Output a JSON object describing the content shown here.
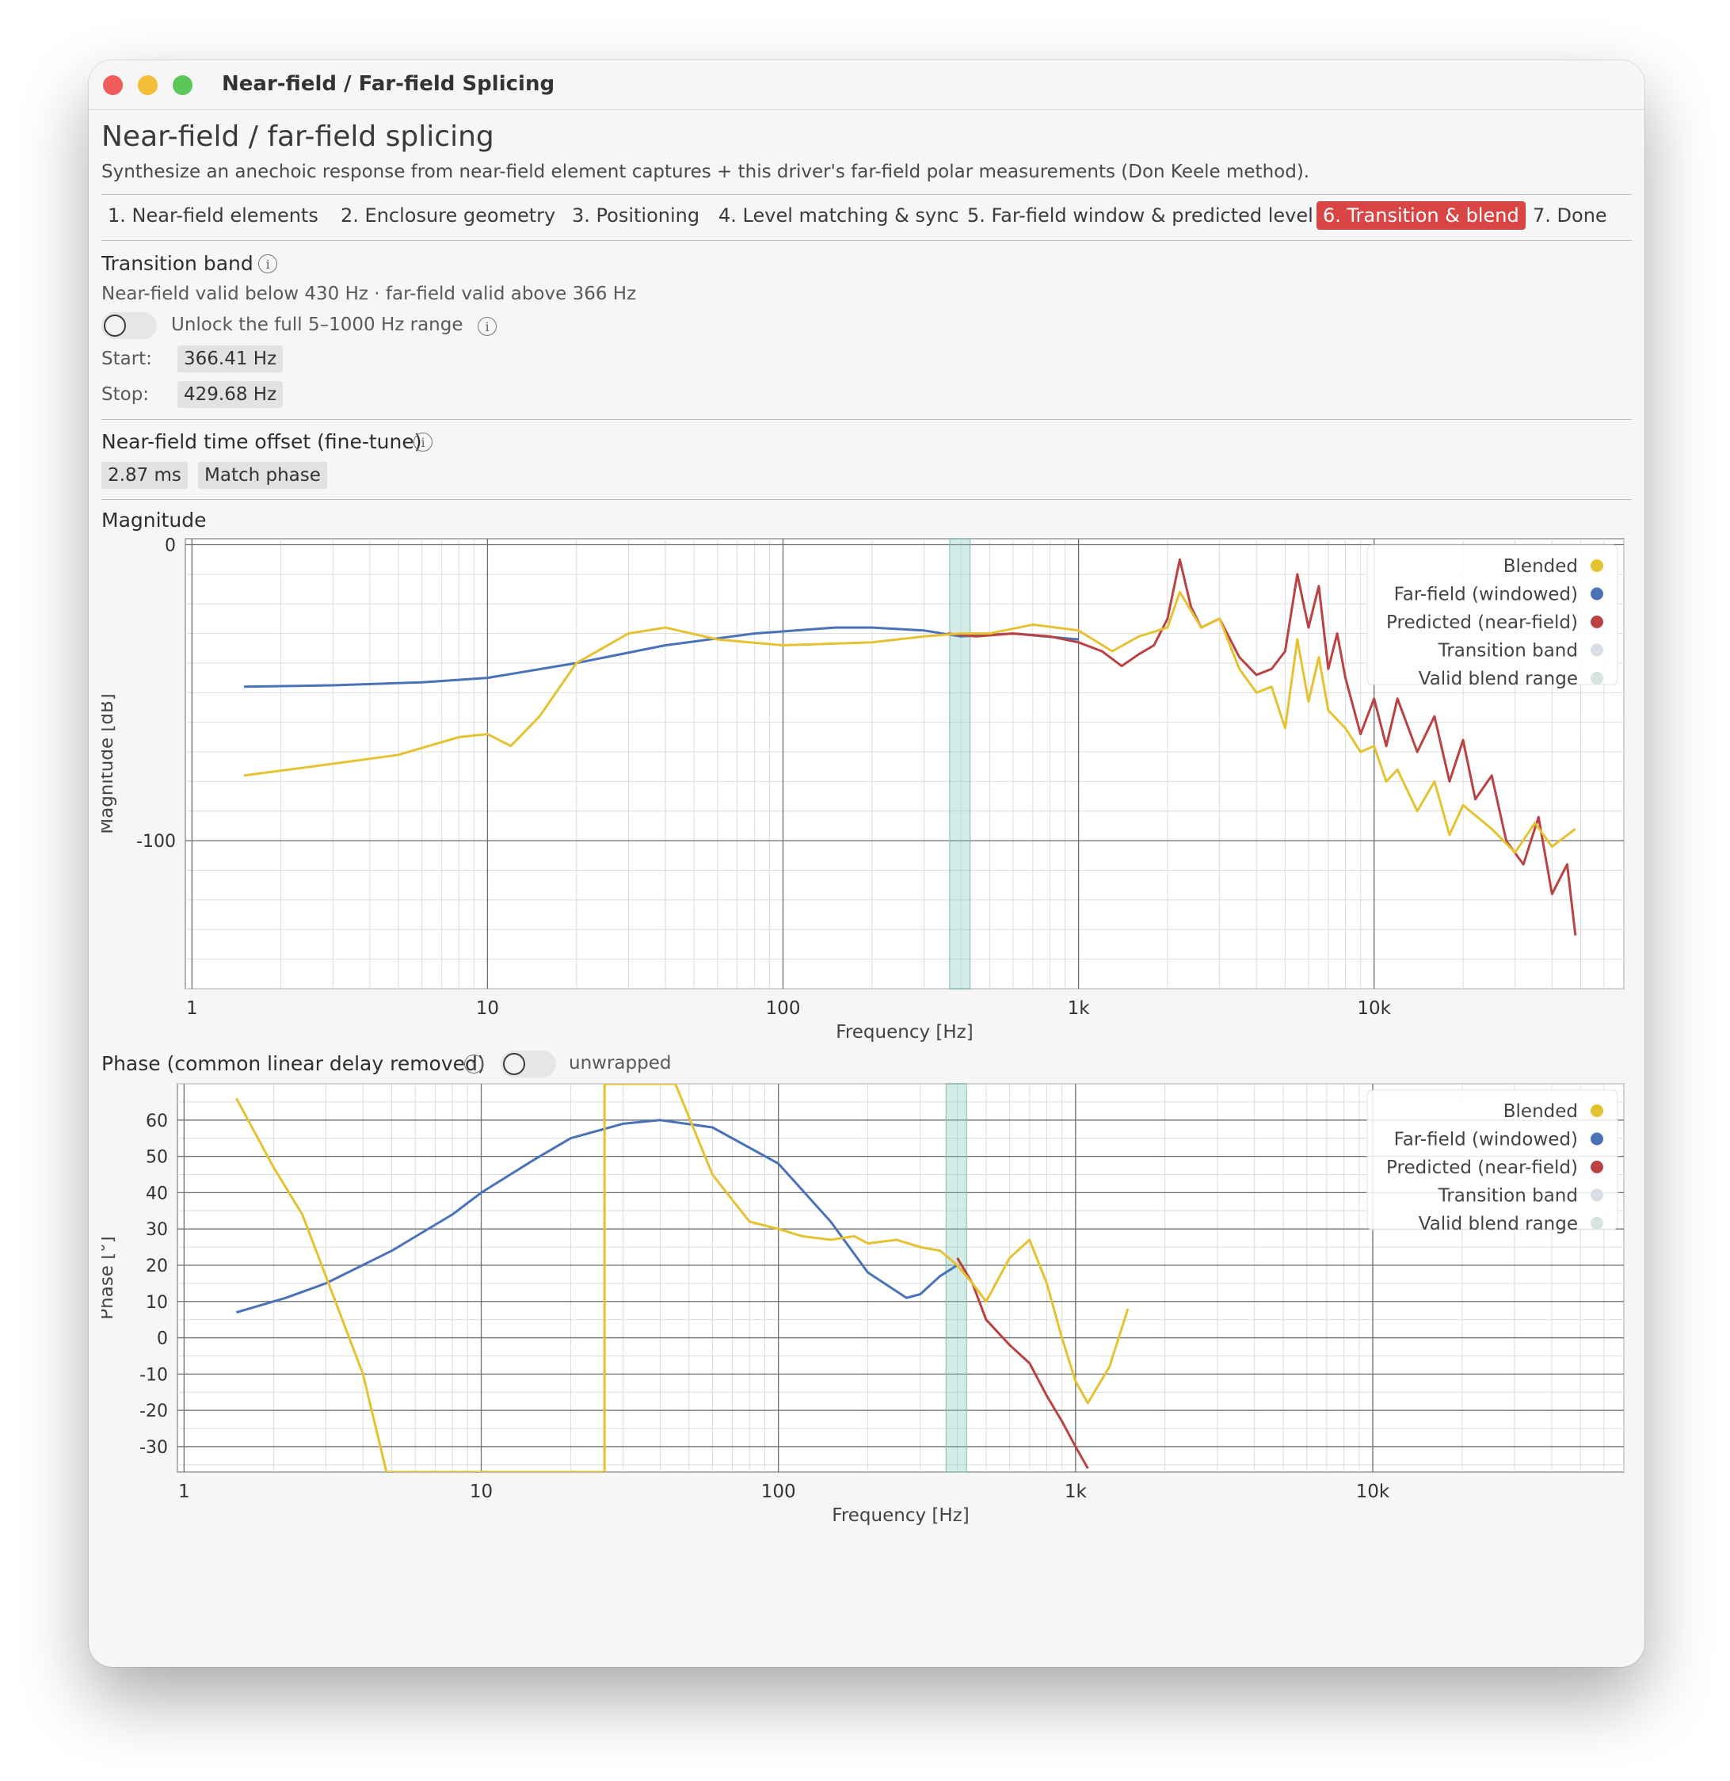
{
  "window": {
    "title": "Near-field / Far-field Splicing"
  },
  "page": {
    "title": "Near-field / far-field splicing",
    "subtitle": "Synthesize an anechoic response from near-field element captures + this driver's far-field polar measurements (Don Keele method)."
  },
  "tabs": [
    {
      "label": "1. Near-field elements",
      "active": false
    },
    {
      "label": "2. Enclosure geometry",
      "active": false
    },
    {
      "label": "3. Positioning",
      "active": false
    },
    {
      "label": "4. Level matching & sync",
      "active": false
    },
    {
      "label": "5. Far-field window & predicted level",
      "active": false
    },
    {
      "label": "6. Transition & blend",
      "active": true
    },
    {
      "label": "7. Done",
      "active": false
    }
  ],
  "transition": {
    "heading": "Transition band",
    "validity": "Near-field valid below 430 Hz  ·  far-field valid above 366 Hz",
    "unlock_label": "Unlock the full 5–1000 Hz range",
    "unlock_on": false,
    "start_label": "Start:",
    "start_value": "366.41 Hz",
    "stop_label": "Stop:",
    "stop_value": "429.68 Hz"
  },
  "offset": {
    "heading": "Near-field time offset (fine-tune)",
    "value": "2.87 ms",
    "match_button": "Match phase"
  },
  "magnitude": {
    "heading": "Magnitude",
    "ylabel": "Magnitude [dB]",
    "xlabel": "Frequency [Hz]"
  },
  "phase": {
    "heading": "Phase (common linear delay removed)",
    "toggle_label": "unwrapped",
    "unwrapped_on": false,
    "ylabel": "Phase [°]",
    "xlabel": "Frequency [Hz]"
  },
  "legend": [
    {
      "label": "Blended",
      "color": "#e5c232"
    },
    {
      "label": "Far-field (windowed)",
      "color": "#4a72b8"
    },
    {
      "label": "Predicted (near-field)",
      "color": "#bb4242"
    },
    {
      "label": "Transition band",
      "color": "#d8dde6"
    },
    {
      "label": "Valid blend range",
      "color": "#d9e2dc"
    }
  ],
  "chart_data": [
    {
      "type": "line",
      "title": "Magnitude",
      "xlabel": "Frequency [Hz]",
      "ylabel": "Magnitude [dB]",
      "xscale": "log",
      "xlim": [
        0.95,
        70000
      ],
      "ylim": [
        -150,
        2
      ],
      "x_ticks": [
        {
          "value": 1,
          "label": "1"
        },
        {
          "value": 10,
          "label": "10"
        },
        {
          "value": 100,
          "label": "100"
        },
        {
          "value": 1000,
          "label": "1k"
        },
        {
          "value": 10000,
          "label": "10k"
        }
      ],
      "y_ticks": [
        {
          "value": 0,
          "label": "0"
        },
        {
          "value": -100,
          "label": "-100"
        }
      ],
      "grid": true,
      "legend_position": "top-right",
      "transition_band": [
        366.41,
        429.68
      ],
      "series": [
        {
          "name": "Far-field (windowed)",
          "color": "#4a72b8",
          "x": [
            1.5,
            3,
            6,
            10,
            20,
            40,
            80,
            150,
            200,
            300,
            400,
            600,
            1000
          ],
          "y": [
            -48,
            -47.5,
            -46.5,
            -45,
            -40,
            -34,
            -30,
            -28,
            -28,
            -29,
            -31,
            -30,
            -32
          ]
        },
        {
          "name": "Predicted (near-field)",
          "color": "#bb4242",
          "x": [
            360,
            450,
            600,
            800,
            1000,
            1200,
            1400,
            1600,
            1800,
            2000,
            2200,
            2400,
            2600,
            3000,
            3500,
            4000,
            4500,
            5000,
            5500,
            6000,
            6500,
            7000,
            7500,
            8000,
            9000,
            10000,
            11000,
            12000,
            14000,
            16000,
            18000,
            20000,
            22000,
            25000,
            28000,
            32000,
            36000,
            40000,
            45000,
            48000
          ],
          "y": [
            -30,
            -31,
            -30,
            -31,
            -33,
            -36,
            -41,
            -37,
            -34,
            -25,
            -5,
            -21,
            -28,
            -25,
            -38,
            -44,
            -42,
            -36,
            -10,
            -28,
            -14,
            -42,
            -30,
            -45,
            -64,
            -52,
            -68,
            -52,
            -70,
            -58,
            -80,
            -66,
            -86,
            -78,
            -100,
            -108,
            -92,
            -118,
            -108,
            -132
          ]
        },
        {
          "name": "Blended",
          "color": "#e5c232",
          "x": [
            1.5,
            3,
            5,
            8,
            10,
            12,
            15,
            20,
            30,
            40,
            60,
            100,
            200,
            300,
            400,
            500,
            700,
            1000,
            1300,
            1600,
            2000,
            2200,
            2600,
            3000,
            3500,
            4000,
            4500,
            5000,
            5500,
            6000,
            6500,
            7000,
            8000,
            9000,
            10000,
            11000,
            12000,
            14000,
            16000,
            18000,
            20000,
            25000,
            30000,
            35000,
            40000,
            48000
          ],
          "y": [
            -78,
            -74,
            -71,
            -65,
            -64,
            -68,
            -58,
            -40,
            -30,
            -28,
            -32,
            -34,
            -33,
            -31,
            -30,
            -30,
            -27,
            -29,
            -36,
            -31,
            -28,
            -16,
            -28,
            -25,
            -42,
            -50,
            -48,
            -62,
            -32,
            -53,
            -38,
            -56,
            -62,
            -70,
            -68,
            -80,
            -76,
            -90,
            -80,
            -98,
            -88,
            -96,
            -104,
            -94,
            -102,
            -96
          ]
        }
      ]
    },
    {
      "type": "line",
      "title": "Phase (common linear delay removed)",
      "xlabel": "Frequency [Hz]",
      "ylabel": "Phase [°]",
      "xscale": "log",
      "xlim": [
        0.95,
        70000
      ],
      "ylim": [
        -37,
        70
      ],
      "x_ticks": [
        {
          "value": 1,
          "label": "1"
        },
        {
          "value": 10,
          "label": "10"
        },
        {
          "value": 100,
          "label": "100"
        },
        {
          "value": 1000,
          "label": "1k"
        },
        {
          "value": 10000,
          "label": "10k"
        }
      ],
      "y_ticks": [
        {
          "value": 60,
          "label": "60"
        },
        {
          "value": 50,
          "label": "50"
        },
        {
          "value": 40,
          "label": "40"
        },
        {
          "value": 30,
          "label": "30"
        },
        {
          "value": 20,
          "label": "20"
        },
        {
          "value": 10,
          "label": "10"
        },
        {
          "value": 0,
          "label": "0"
        },
        {
          "value": -10,
          "label": "-10"
        },
        {
          "value": -20,
          "label": "-20"
        },
        {
          "value": -30,
          "label": "-30"
        }
      ],
      "grid": true,
      "legend_position": "top-right",
      "transition_band": [
        366.41,
        429.68
      ],
      "series": [
        {
          "name": "Far-field (windowed)",
          "color": "#4a72b8",
          "x": [
            1.5,
            2.2,
            3,
            5,
            8,
            10,
            15,
            20,
            30,
            40,
            60,
            100,
            150,
            200,
            270,
            300,
            350,
            400
          ],
          "y": [
            7,
            11,
            15,
            24,
            34,
            40,
            49,
            55,
            59,
            60,
            58,
            48,
            32,
            18,
            11,
            12,
            17,
            20
          ]
        },
        {
          "name": "Predicted (near-field)",
          "color": "#bb4242",
          "x": [
            400,
            450,
            500,
            600,
            700,
            800,
            900,
            1000,
            1100
          ],
          "y": [
            22,
            15,
            5,
            -2,
            -7,
            -16,
            -23,
            -30,
            -36
          ]
        },
        {
          "name": "Blended",
          "color": "#e5c232",
          "x": [
            1.5,
            2,
            2.5,
            3,
            4,
            4.8,
            26,
            26,
            45,
            60,
            70,
            80,
            100,
            120,
            150,
            180,
            200,
            250,
            300,
            350,
            400,
            450,
            500,
            600,
            700,
            800,
            900,
            1000,
            1100,
            1300,
            1500
          ],
          "y": [
            66,
            47,
            34,
            17,
            -10,
            -37,
            -37,
            70,
            70,
            45,
            38,
            32,
            30,
            28,
            27,
            28,
            26,
            27,
            25,
            24,
            20,
            15,
            10,
            22,
            27,
            15,
            0,
            -12,
            -18,
            -8,
            8
          ]
        }
      ]
    }
  ]
}
